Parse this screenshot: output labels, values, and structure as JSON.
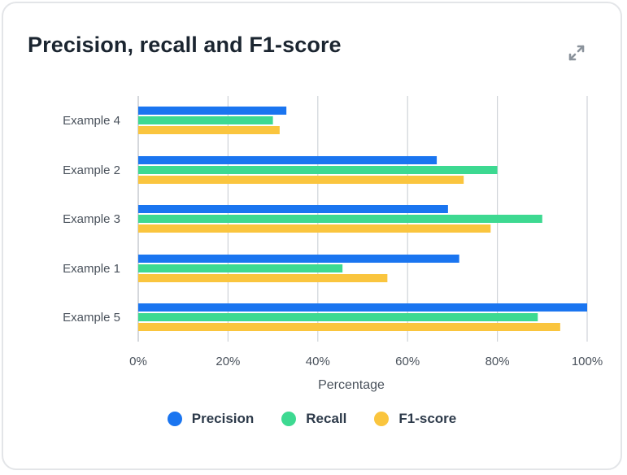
{
  "card": {
    "title": "Precision, recall and F1-score",
    "expand_icon": "expand-arrows-icon"
  },
  "colors": {
    "precision": "#1a75f0",
    "recall": "#3dd991",
    "f1": "#fac53e",
    "grid": "#cfd3d8",
    "text": "#4a525c"
  },
  "legend": {
    "items": [
      {
        "label": "Precision",
        "color": "#1a75f0"
      },
      {
        "label": "Recall",
        "color": "#3dd991"
      },
      {
        "label": "F1-score",
        "color": "#fac53e"
      }
    ]
  },
  "chart_data": {
    "type": "bar",
    "orientation": "horizontal",
    "title": "Precision, recall and F1-score",
    "xlabel": "Percentage",
    "ylabel": "",
    "xlim": [
      0,
      100
    ],
    "x_ticks": [
      "0%",
      "20%",
      "40%",
      "60%",
      "80%",
      "100%"
    ],
    "x_tick_values": [
      0,
      20,
      40,
      60,
      80,
      100
    ],
    "grid": true,
    "legend_position": "bottom-center",
    "categories": [
      "Example 4",
      "Example 2",
      "Example 3",
      "Example 1",
      "Example 5"
    ],
    "series": [
      {
        "name": "Precision",
        "color": "#1a75f0",
        "values": [
          33,
          66.5,
          69,
          71.5,
          100
        ]
      },
      {
        "name": "Recall",
        "color": "#3dd991",
        "values": [
          30,
          80,
          90,
          45.5,
          89
        ]
      },
      {
        "name": "F1-score",
        "color": "#fac53e",
        "values": [
          31.5,
          72.5,
          78.5,
          55.5,
          94
        ]
      }
    ]
  }
}
